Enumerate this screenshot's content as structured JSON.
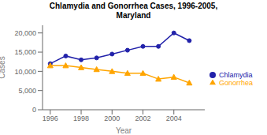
{
  "chart_data": {
    "type": "line",
    "title": "Chlamydia and Gonorrhea Cases, 1996-2005,\nMaryland",
    "x_label": "Year",
    "y_label": "Cases",
    "x": [
      1996,
      1997,
      1998,
      1999,
      2000,
      2001,
      2002,
      2003,
      2004,
      2005
    ],
    "series": [
      {
        "name": "Chlamydia",
        "color": "#2222AA",
        "marker": "o",
        "values": [
          12000,
          14000,
          13000,
          13500,
          14500,
          15500,
          16500,
          16500,
          20000,
          18000
        ]
      },
      {
        "name": "Gonorrhea",
        "color": "#FFA500",
        "marker": "^",
        "values": [
          11500,
          11500,
          11000,
          10500,
          10000,
          9500,
          9500,
          8000,
          8500,
          7000
        ]
      }
    ],
    "xlim": [
      1995.5,
      2006
    ],
    "xticks": [
      1996,
      1998,
      2000,
      2002,
      2004
    ],
    "ylim": [
      0,
      22000
    ],
    "yticks": [
      0,
      {
        "value": 5000,
        "label": "5,000"
      },
      {
        "value": 10000,
        "label": "10,000"
      },
      {
        "value": 15000,
        "label": "15,000"
      },
      {
        "value": 20000,
        "label": "20,000"
      }
    ],
    "legend": "right",
    "grid": false
  }
}
